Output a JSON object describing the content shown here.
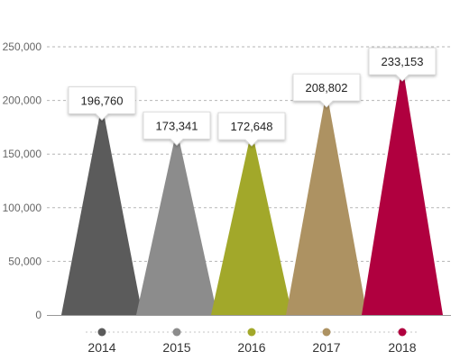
{
  "chart_data": {
    "type": "bar",
    "bar_shape": "triangle",
    "categories": [
      "2014",
      "2015",
      "2016",
      "2017",
      "2018"
    ],
    "values": [
      196760,
      173341,
      172648,
      208802,
      233153
    ],
    "value_labels": [
      "196,760",
      "173,341",
      "172,648",
      "208,802",
      "233,153"
    ],
    "colors": [
      "#5b5b5b",
      "#8c8c8c",
      "#a2a82a",
      "#ad9262",
      "#b0003f"
    ],
    "title": "",
    "xlabel": "",
    "ylabel": "",
    "ylim": [
      0,
      250000
    ],
    "yticks": [
      0,
      50000,
      100000,
      150000,
      200000,
      250000
    ],
    "ytick_labels": [
      "0",
      "50,000",
      "100,000",
      "150,000",
      "200,000",
      "250,000"
    ],
    "grid": true,
    "grid_style": "dashed",
    "legend": "none"
  }
}
